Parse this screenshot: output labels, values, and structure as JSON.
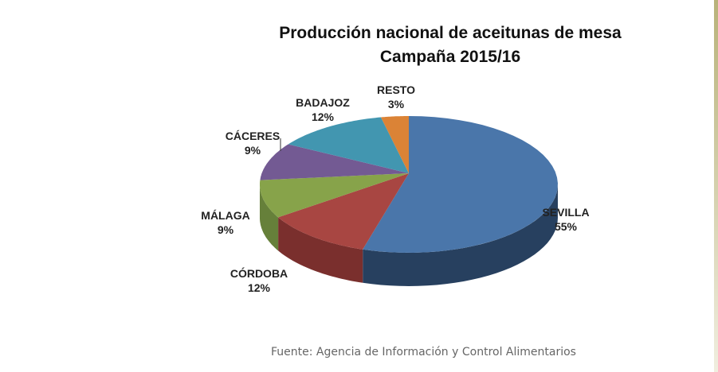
{
  "chart_data": {
    "type": "pie",
    "title": "Producción nacional de aceitunas de mesa",
    "subtitle": "Campaña 2015/16",
    "three_d": true,
    "slices": [
      {
        "label": "SEVILLA",
        "value": 55,
        "display": "55%",
        "color": "#4a76aa",
        "side": "#27405f"
      },
      {
        "label": "CÓRDOBA",
        "value": 12,
        "display": "12%",
        "color": "#a84642",
        "side": "#7a2f2d"
      },
      {
        "label": "MÁLAGA",
        "value": 9,
        "display": "9%",
        "color": "#87a34a",
        "side": "#66803a"
      },
      {
        "label": "CÁCERES",
        "value": 9,
        "display": "9%",
        "color": "#735a93",
        "side": "#54416e"
      },
      {
        "label": "BADAJOZ",
        "value": 12,
        "display": "12%",
        "color": "#4296b0",
        "side": "#2f6f83"
      },
      {
        "label": "RESTO",
        "value": 3,
        "display": "3%",
        "color": "#db8336",
        "side": "#a86128"
      }
    ]
  },
  "source": "Fuente: Agencia de Información y Control Alimentarios",
  "accent_stripe": "#b8b27a"
}
